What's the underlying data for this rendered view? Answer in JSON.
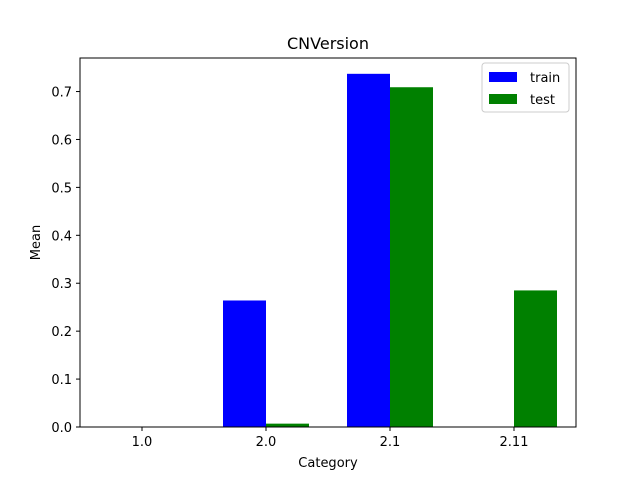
{
  "chart_data": {
    "type": "bar",
    "title": "CNVersion",
    "xlabel": "Category",
    "ylabel": "Mean",
    "categories": [
      "1.0",
      "2.0",
      "2.1",
      "2.11"
    ],
    "series": [
      {
        "name": "train",
        "color": "#0000ff",
        "values": [
          0.0,
          0.264,
          0.737,
          0.0
        ]
      },
      {
        "name": "test",
        "color": "#008000",
        "values": [
          0.0,
          0.007,
          0.709,
          0.285
        ]
      }
    ],
    "ylim": [
      0,
      0.77
    ],
    "yticks": [
      "0.0",
      "0.1",
      "0.2",
      "0.3",
      "0.4",
      "0.5",
      "0.6",
      "0.7"
    ],
    "legend": "top-right",
    "grid": false
  }
}
